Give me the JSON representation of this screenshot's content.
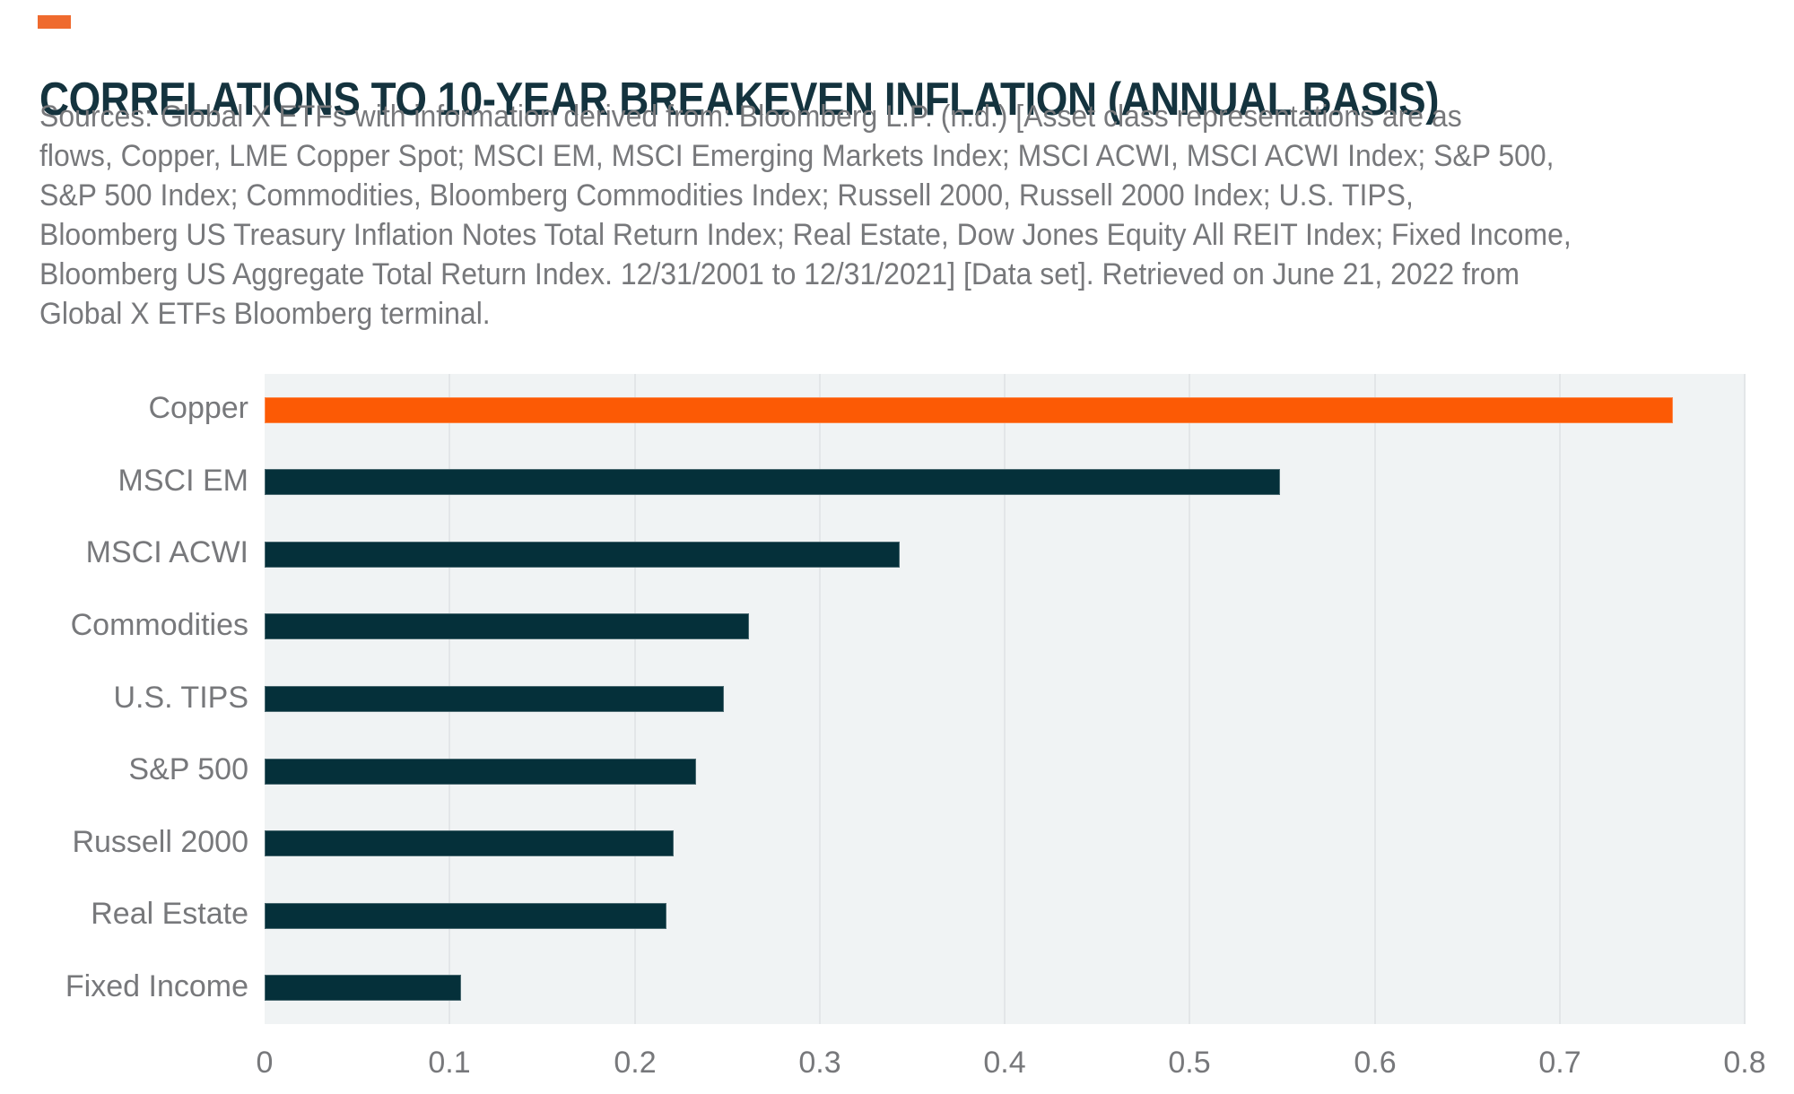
{
  "colors": {
    "page_background": "#ffffff",
    "accent_square": "#ef6a2e",
    "title": "#14333e",
    "body_text": "#77787b",
    "plot_background": "#f0f3f4",
    "gridline": "#e3e6e8",
    "bar_highlight": "#fc5a05",
    "bar_default": "#05303a"
  },
  "header": {
    "title": "CORRELATIONS TO 10-YEAR BREAKEVEN INFLATION (ANNUAL BASIS)"
  },
  "sources": {
    "lines": [
      "Sources: Global X ETFs with information derived from: Bloomberg L.P. (n.d.) [Asset class representations are as",
      "flows, Copper, LME Copper Spot; MSCI EM, MSCI Emerging Markets Index; MSCI ACWI, MSCI ACWI Index; S&P 500,",
      "S&P 500 Index; Commodities, Bloomberg Commodities Index; Russell 2000, Russell 2000 Index; U.S. TIPS,",
      "Bloomberg US Treasury Inflation Notes Total Return Index; Real Estate, Dow Jones Equity All REIT Index; Fixed Income,",
      "Bloomberg US Aggregate Total Return Index. 12/31/2001 to 12/31/2021] [Data set]. Retrieved on June 21, 2022 from",
      "Global X ETFs Bloomberg terminal."
    ]
  },
  "chart_data": {
    "type": "bar",
    "orientation": "horizontal",
    "title": "CORRELATIONS TO 10-YEAR BREAKEVEN INFLATION (ANNUAL BASIS)",
    "xlabel": "",
    "ylabel": "",
    "categories": [
      "Copper",
      "MSCI EM",
      "MSCI ACWI",
      "Commodities",
      "U.S. TIPS",
      "S&P 500",
      "Russell 2000",
      "Real Estate",
      "Fixed Income"
    ],
    "values": [
      0.761,
      0.549,
      0.343,
      0.262,
      0.248,
      0.233,
      0.221,
      0.217,
      0.106
    ],
    "bar_colors": [
      "#fc5a05",
      "#05303a",
      "#05303a",
      "#05303a",
      "#05303a",
      "#05303a",
      "#05303a",
      "#05303a",
      "#05303a"
    ],
    "highlight_category": "Copper",
    "xlim": [
      0,
      0.8
    ],
    "x_ticks": [
      "0",
      "0.1",
      "0.2",
      "0.3",
      "0.4",
      "0.5",
      "0.6",
      "0.7",
      "0.8"
    ],
    "grid": "vertical",
    "legend": "none"
  }
}
